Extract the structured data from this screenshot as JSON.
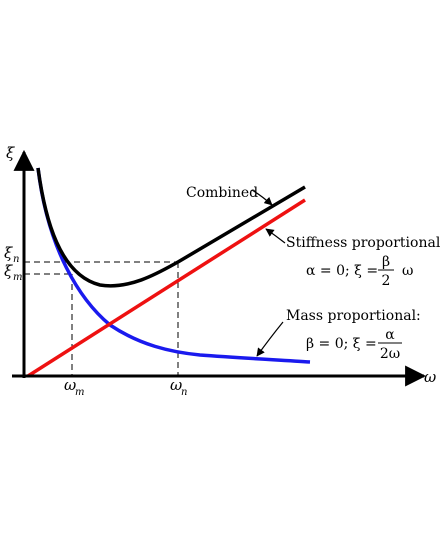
{
  "diagram": {
    "axes": {
      "y_symbol": "ξ",
      "x_symbol": "ω"
    },
    "ticks": {
      "xi_n_base": "ξ",
      "xi_n_sub": "n",
      "xi_m_base": "ξ",
      "xi_m_sub": "m",
      "omega_m_base": "ω",
      "omega_m_sub": "m",
      "omega_n_base": "ω",
      "omega_n_sub": "n"
    },
    "labels": {
      "combined": "Combined",
      "stiffness": "Stiffness proportional:",
      "mass": "Mass proportional:"
    },
    "equations": {
      "stiffness_lhs": "α = 0;  ξ =",
      "stiffness_num": "β",
      "stiffness_den": "2",
      "stiffness_rhs": "ω",
      "mass_lhs": "β = 0;  ξ =",
      "mass_num": "α",
      "mass_den": "2ω"
    },
    "curve_colors": {
      "combined": "#000000",
      "stiffness": "#ee1111",
      "mass": "#1a1aee"
    }
  }
}
